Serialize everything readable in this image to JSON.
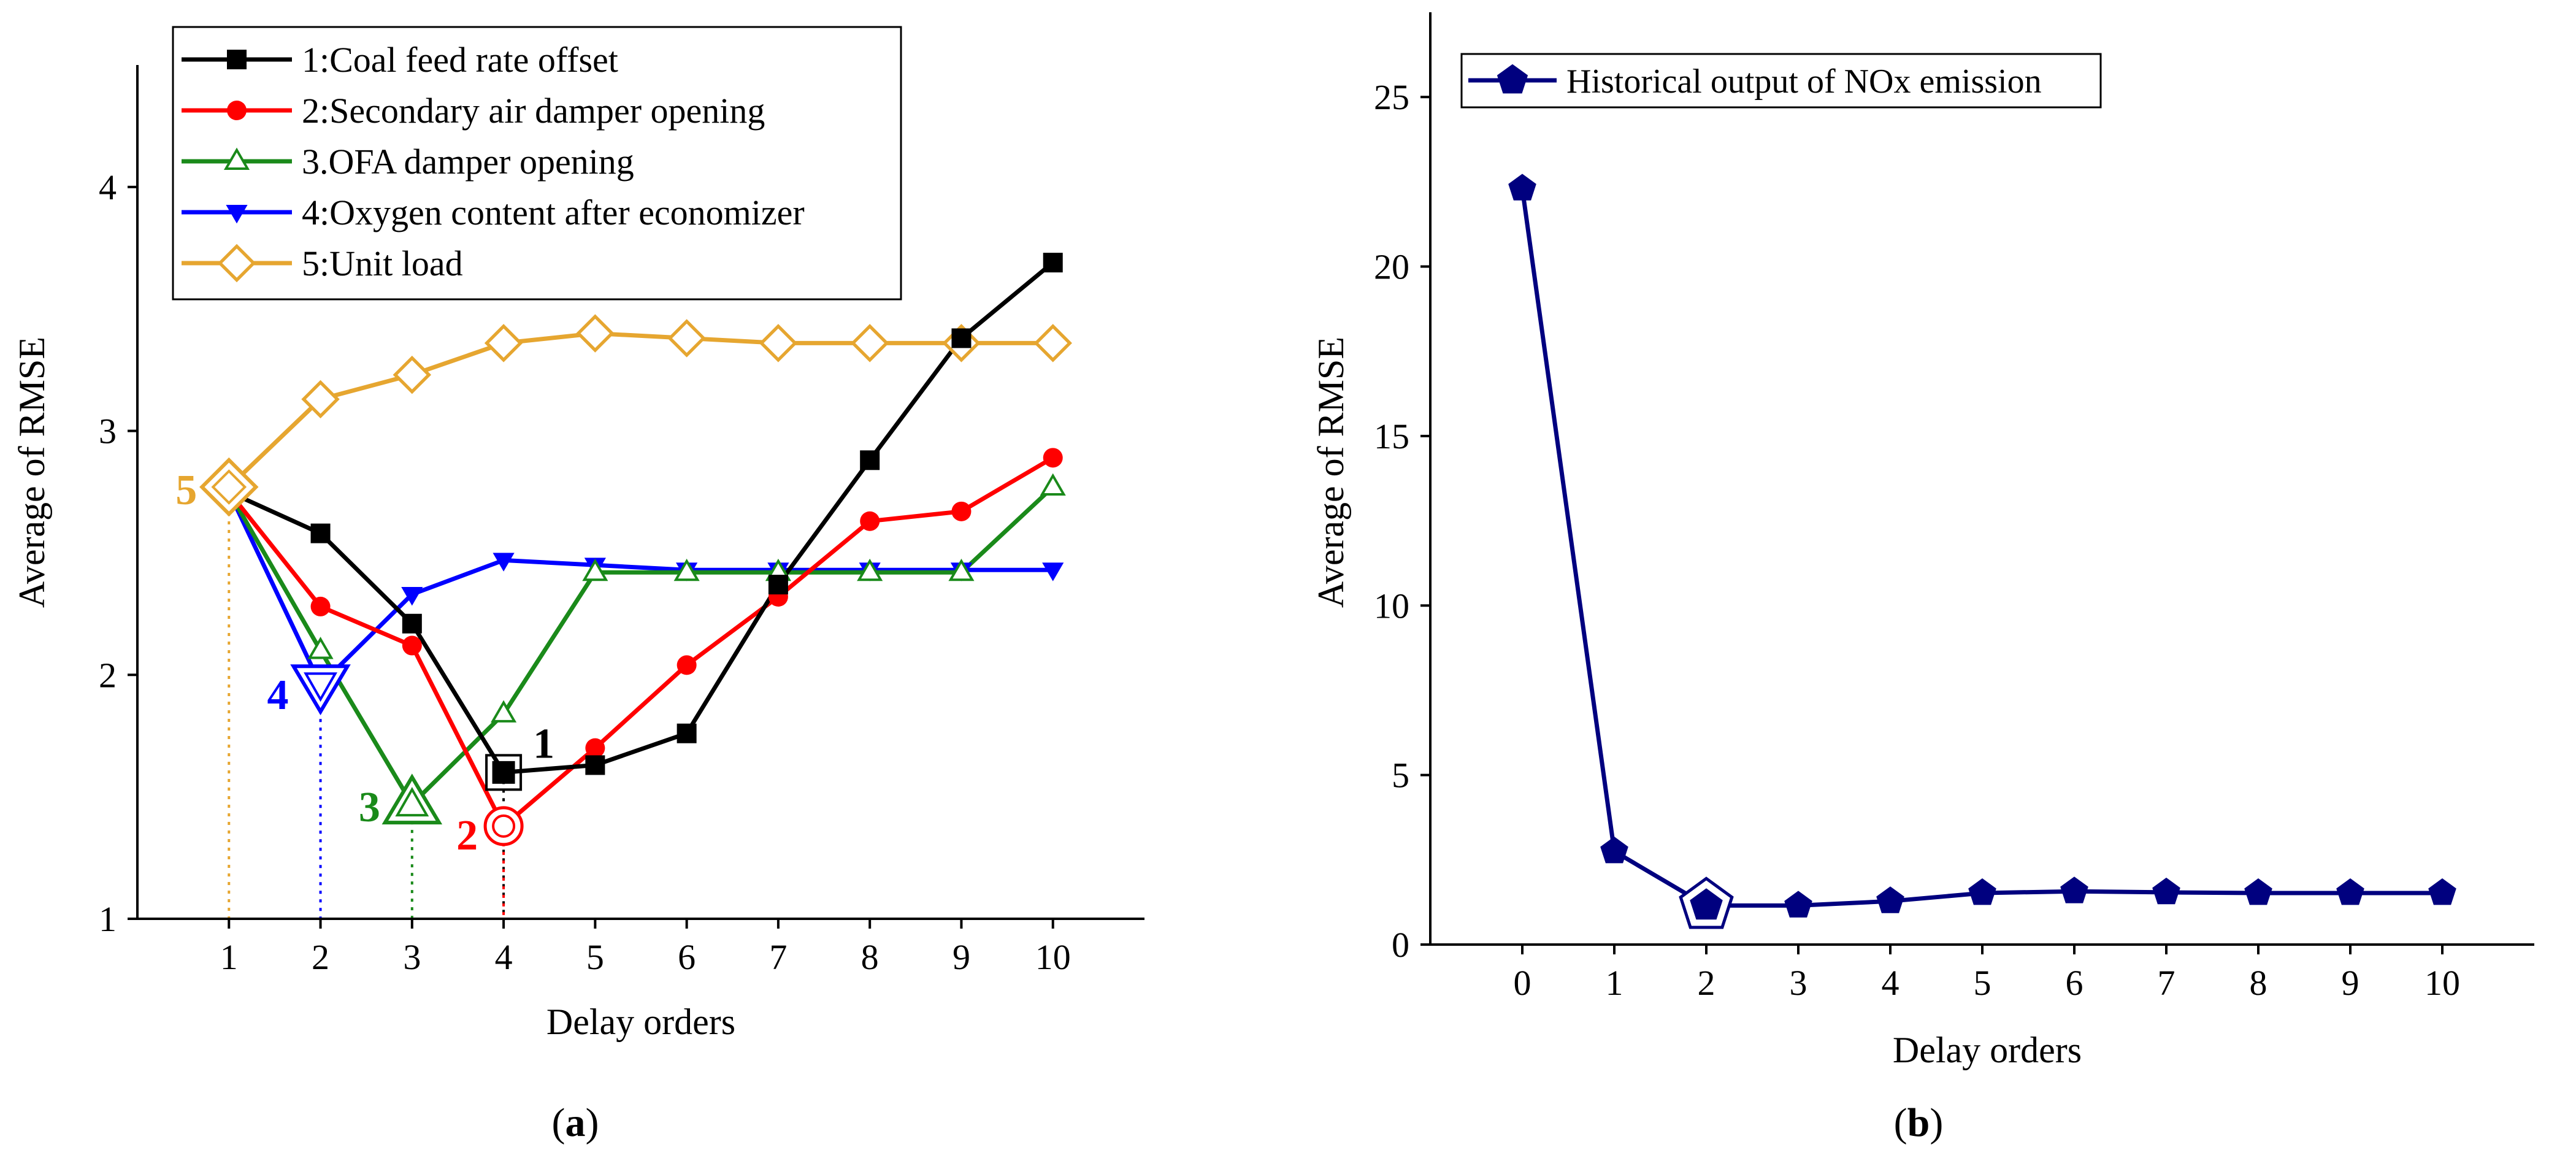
{
  "chart_data": [
    {
      "type": "line",
      "panel_label": "a",
      "xlabel": "Delay orders",
      "ylabel": "Average of RMSE",
      "xlim": [
        0,
        11
      ],
      "ylim": [
        1,
        4.5
      ],
      "x": [
        1,
        2,
        3,
        4,
        5,
        6,
        7,
        8,
        9,
        10
      ],
      "xticks": [
        "1",
        "2",
        "3",
        "4",
        "5",
        "6",
        "7",
        "8",
        "9",
        "10"
      ],
      "yticks": [
        "1",
        "2",
        "3",
        "4"
      ],
      "ytick_values": [
        1,
        2,
        3,
        4
      ],
      "legend_position": "top-left",
      "series": [
        {
          "id": "s1",
          "name": "1:Coal feed rate offset",
          "color": "#000000",
          "marker": "square-filled",
          "values": [
            2.75,
            2.58,
            2.21,
            1.6,
            1.63,
            1.76,
            2.37,
            2.88,
            3.38,
            3.69
          ],
          "min_x": 4,
          "min_label": "1"
        },
        {
          "id": "s2",
          "name": "2:Secondary air damper opening",
          "color": "#ff0000",
          "marker": "circle-filled",
          "values": [
            2.75,
            2.28,
            2.12,
            1.38,
            1.7,
            2.04,
            2.32,
            2.63,
            2.67,
            2.89
          ],
          "min_x": 4,
          "min_label": "2"
        },
        {
          "id": "s3",
          "name": "3.OFA damper opening",
          "color": "#1a8a1a",
          "marker": "triangle-open",
          "values": [
            2.75,
            2.1,
            1.47,
            1.84,
            2.42,
            2.42,
            2.42,
            2.42,
            2.42,
            2.77
          ],
          "min_x": 3,
          "min_label": "3"
        },
        {
          "id": "s4",
          "name": "4:Oxygen content after economizer",
          "color": "#0000ff",
          "marker": "triangle-down-filled",
          "values": [
            2.75,
            1.96,
            2.33,
            2.47,
            2.45,
            2.43,
            2.43,
            2.43,
            2.43,
            2.43
          ],
          "min_x": 2,
          "min_label": "4"
        },
        {
          "id": "s5",
          "name": "5:Unit load",
          "color": "#e6a630",
          "marker": "diamond-open",
          "values": [
            2.77,
            3.13,
            3.23,
            3.36,
            3.4,
            3.38,
            3.36,
            3.36,
            3.36,
            3.36
          ],
          "min_x": 1,
          "min_label": "5"
        }
      ]
    },
    {
      "type": "line",
      "panel_label": "b",
      "xlabel": "Delay orders",
      "ylabel": "Average of RMSE",
      "xlim": [
        -1,
        11
      ],
      "ylim": [
        0,
        27.5
      ],
      "x": [
        0,
        1,
        2,
        3,
        4,
        5,
        6,
        7,
        8,
        9,
        10
      ],
      "xticks": [
        "0",
        "1",
        "2",
        "3",
        "4",
        "5",
        "6",
        "7",
        "8",
        "9",
        "10"
      ],
      "yticks": [
        "0",
        "5",
        "10",
        "15",
        "20",
        "25"
      ],
      "ytick_values": [
        0,
        5,
        10,
        15,
        20,
        25
      ],
      "legend_position": "top-left",
      "series": [
        {
          "id": "n1",
          "name": "Historical output of NOx emission",
          "color": "#00007f",
          "marker": "pentagon-filled",
          "values": [
            22.3,
            2.75,
            1.15,
            1.15,
            1.28,
            1.52,
            1.57,
            1.54,
            1.52,
            1.52,
            1.52
          ],
          "min_x": 2
        }
      ]
    }
  ]
}
